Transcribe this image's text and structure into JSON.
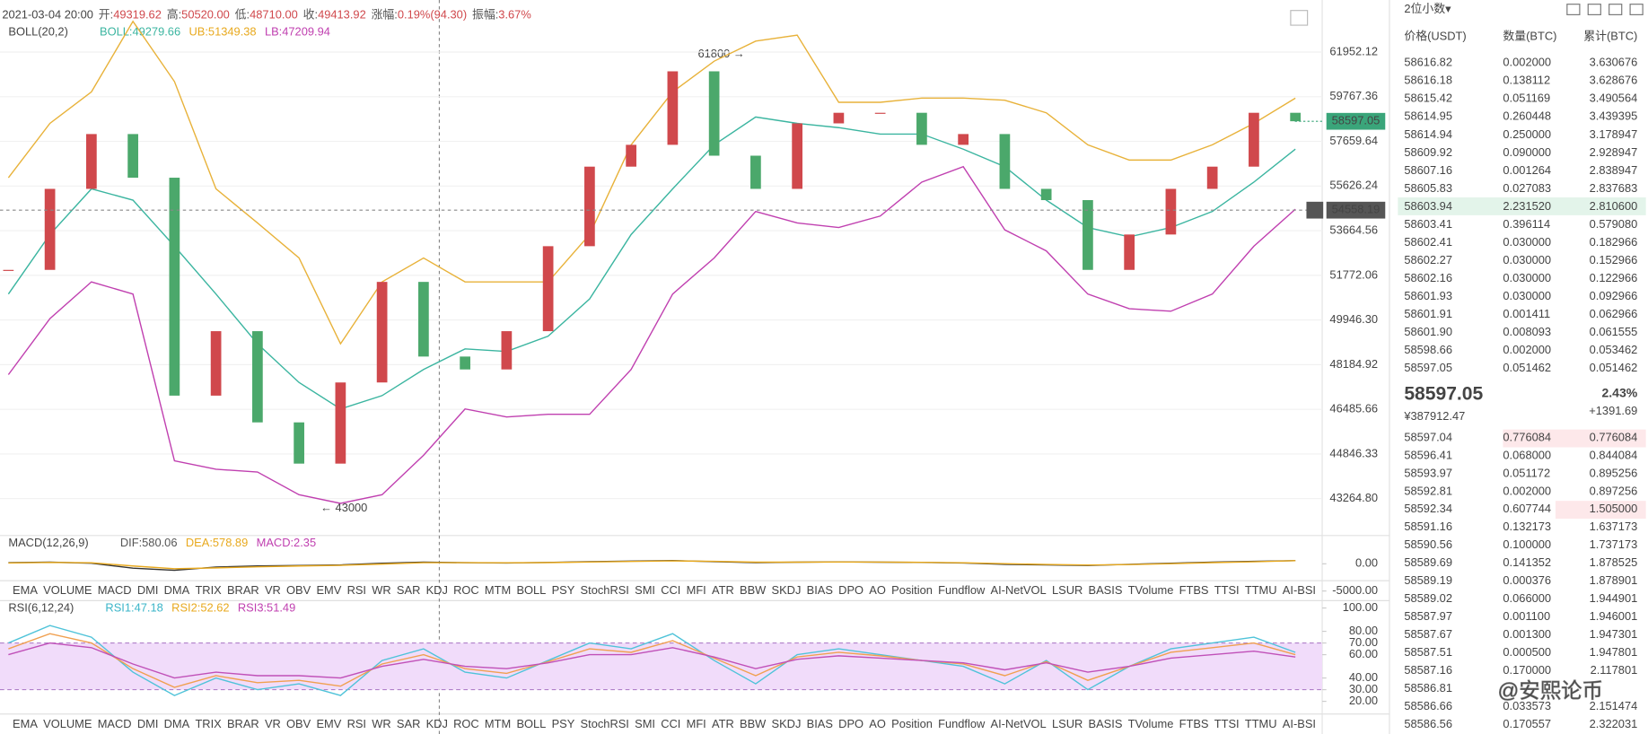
{
  "header": {
    "time": "2021-03-04 20:00",
    "fields": [
      {
        "label": "开:",
        "value": "49319.62"
      },
      {
        "label": "高:",
        "value": "50520.00"
      },
      {
        "label": "低:",
        "value": "48710.00"
      },
      {
        "label": "收:",
        "value": "49413.92"
      },
      {
        "label": "涨幅:",
        "value": "0.19%(94.30)"
      },
      {
        "label": "振幅:",
        "value": "3.67%"
      }
    ]
  },
  "indicators": [
    {
      "name": "BOLL(20,2)",
      "items": [
        {
          "text": "BOLL:49279.66",
          "color": "#3bb5a0"
        },
        {
          "text": "UB:51349.38",
          "color": "#e8a91e"
        },
        {
          "text": "LB:47209.94",
          "color": "#c040b0"
        }
      ]
    },
    {
      "name": "MACD(12,26,9)",
      "items": [
        {
          "text": "DIF:580.06",
          "color": "#555555"
        },
        {
          "text": "DEA:578.89",
          "color": "#e8a91e"
        },
        {
          "text": "MACD:2.35",
          "color": "#c040b0"
        }
      ]
    },
    {
      "name": "RSI(6,12,24)",
      "items": [
        {
          "text": "RSI1:47.18",
          "color": "#3bb5c8"
        },
        {
          "text": "RSI2:52.62",
          "color": "#e8a91e"
        },
        {
          "text": "RSI3:51.49",
          "color": "#c040b0"
        }
      ]
    }
  ],
  "annotations": [
    "61800 →",
    "← 43000"
  ],
  "chart_data": [
    {
      "type": "candlestick",
      "log": true,
      "ylim": [
        42000,
        64600
      ],
      "colors": {
        "up": "#d0484c",
        "down": "#4ba86b"
      },
      "values": [
        52000,
        55500,
        58000,
        56000,
        47000,
        49500,
        46000,
        44500,
        47500,
        51500,
        48500,
        48000,
        49500,
        53000,
        56500,
        57500,
        61000,
        57000,
        55500,
        58500,
        59000,
        59000,
        57500,
        58000,
        55500,
        55000,
        52000,
        53500,
        55500,
        56500,
        59000,
        58600
      ],
      "series": [
        {
          "color": "#e8b23a",
          "values": [
            56000,
            58500,
            60000,
            63500,
            60500,
            55500,
            54000,
            52500,
            49000,
            51500,
            52500,
            51500,
            51500,
            51500,
            53500,
            57500,
            60000,
            61500,
            62500,
            62800,
            59500,
            59500,
            59700,
            59700,
            59600,
            59000,
            57500,
            56800,
            56800,
            57500,
            58500,
            59700
          ]
        },
        {
          "color": "#3bb5a0",
          "values": [
            51000,
            53500,
            55500,
            55000,
            53000,
            51000,
            49000,
            47500,
            46500,
            47000,
            48000,
            48800,
            48700,
            49300,
            50800,
            53500,
            55500,
            57500,
            58800,
            58500,
            58300,
            58000,
            58000,
            57300,
            56500,
            55000,
            53800,
            53400,
            53800,
            54500,
            55800,
            57300
          ]
        },
        {
          "color": "#c040b0",
          "values": [
            47800,
            50000,
            51500,
            51000,
            44600,
            44300,
            44200,
            43400,
            43100,
            43400,
            44800,
            46500,
            46200,
            46300,
            46300,
            48000,
            51000,
            52500,
            54500,
            54000,
            53800,
            54300,
            55800,
            56500,
            53700,
            52800,
            51000,
            50400,
            50300,
            51000,
            53000,
            54600
          ]
        }
      ],
      "yticks": [
        61952.12,
        59767.36,
        57659.64,
        55626.24,
        53664.56,
        51772.06,
        {
          "value": 49946.3,
          "label": "49946.30"
        },
        48184.92,
        46485.66,
        44846.33,
        {
          "value": 43264.8,
          "label": "43264.80"
        }
      ],
      "grid": true,
      "last_price": 58597.05,
      "crosshair_price": 54558.19,
      "last_color": "#3aa57a"
    },
    {
      "type": "line",
      "ylim": [
        -6000,
        2300
      ],
      "series": [
        {
          "color": "#333333",
          "values": [
            200,
            300,
            100,
            -800,
            -1200,
            -600,
            -400,
            -300,
            -200,
            100,
            300,
            200,
            150,
            250,
            400,
            500,
            600,
            400,
            200,
            300,
            350,
            300,
            250,
            150,
            -100,
            -200,
            -300,
            -100,
            100,
            300,
            450,
            580
          ]
        },
        {
          "color": "#e8a91e",
          "values": [
            150,
            250,
            180,
            -400,
            -900,
            -750,
            -550,
            -400,
            -280,
            -50,
            200,
            200,
            180,
            220,
            330,
            430,
            530,
            450,
            300,
            300,
            330,
            310,
            270,
            190,
            20,
            -120,
            -230,
            -150,
            30,
            220,
            380,
            579
          ]
        }
      ],
      "yticks": [
        {
          "value": 0,
          "label": "0.00"
        },
        {
          "value": -5000,
          "label": "-5000.00"
        }
      ]
    },
    {
      "type": "line",
      "ylim": [
        10,
        100
      ],
      "band": [
        30,
        70
      ],
      "band_color": "#f1dcfa",
      "series": [
        {
          "color": "#4fc3d9",
          "values": [
            70,
            85,
            75,
            45,
            25,
            40,
            30,
            35,
            25,
            55,
            65,
            45,
            40,
            55,
            70,
            65,
            78,
            55,
            35,
            60,
            65,
            60,
            55,
            50,
            35,
            55,
            30,
            50,
            65,
            70,
            75,
            62
          ]
        },
        {
          "color": "#f0a050",
          "values": [
            65,
            78,
            70,
            48,
            32,
            42,
            36,
            38,
            33,
            52,
            60,
            48,
            44,
            54,
            65,
            62,
            72,
            57,
            42,
            58,
            62,
            59,
            55,
            52,
            42,
            54,
            38,
            50,
            62,
            66,
            70,
            60
          ]
        },
        {
          "color": "#c050b8",
          "values": [
            60,
            70,
            66,
            52,
            40,
            45,
            42,
            42,
            40,
            50,
            56,
            50,
            48,
            53,
            60,
            60,
            66,
            58,
            48,
            56,
            59,
            57,
            55,
            53,
            47,
            53,
            45,
            50,
            57,
            60,
            63,
            58
          ]
        }
      ],
      "yticks": [
        {
          "value": 100,
          "label": "100.00"
        },
        {
          "value": 80,
          "label": "80.00"
        },
        {
          "value": 70,
          "label": "70.00"
        },
        {
          "value": 60,
          "label": "60.00"
        },
        {
          "value": 40,
          "label": "40.00"
        },
        {
          "value": 30,
          "label": "30.00"
        },
        {
          "value": 20,
          "label": "20.00"
        }
      ]
    }
  ],
  "tabs": [
    "EMA",
    "VOLUME",
    "MACD",
    "DMI",
    "DMA",
    "TRIX",
    "BRAR",
    "VR",
    "OBV",
    "EMV",
    "RSI",
    "WR",
    "SAR",
    "KDJ",
    "ROC",
    "MTM",
    "BOLL",
    "PSY",
    "StochRSI",
    "SMI",
    "CCI",
    "MFI",
    "ATR",
    "BBW",
    "SKDJ",
    "BIAS",
    "DPO",
    "AO",
    "Position",
    "Fundflow",
    "AI-NetVOL",
    "LSUR",
    "BASIS",
    "TVolume",
    "FTBS",
    "TTSI",
    "TTMU",
    "AI-BSI"
  ],
  "tab_bars": [
    {
      "active": "MACD"
    },
    {
      "active": "RSI"
    }
  ],
  "orderbook": {
    "precision": "2位小数▾",
    "columns": [
      "价格(USDT)",
      "数量(BTC)",
      "累计(BTC)"
    ],
    "asks": [
      [
        "58616.82",
        "0.002000",
        "3.630676"
      ],
      [
        "58616.18",
        "0.138112",
        "3.628676"
      ],
      [
        "58615.42",
        "0.051169",
        "3.490564"
      ],
      [
        "58614.95",
        "0.260448",
        "3.439395"
      ],
      [
        "58614.94",
        "0.250000",
        "3.178947"
      ],
      [
        "58609.92",
        "0.090000",
        "2.928947"
      ],
      [
        "58607.16",
        "0.001264",
        "2.838947"
      ],
      [
        "58605.83",
        "0.027083",
        "2.837683"
      ],
      [
        "58603.94",
        "2.231520",
        "2.810600"
      ],
      [
        "58603.41",
        "0.396114",
        "0.579080"
      ],
      [
        "58602.41",
        "0.030000",
        "0.182966"
      ],
      [
        "58602.27",
        "0.030000",
        "0.152966"
      ],
      [
        "58602.16",
        "0.030000",
        "0.122966"
      ],
      [
        "58601.93",
        "0.030000",
        "0.092966"
      ],
      [
        "58601.91",
        "0.001411",
        "0.062966"
      ],
      [
        "58601.90",
        "0.008093",
        "0.061555"
      ],
      [
        "58598.66",
        "0.002000",
        "0.053462"
      ],
      [
        "58597.05",
        "0.051462",
        "0.051462"
      ]
    ],
    "last": "58597.05",
    "change_pct": "2.43%",
    "cny": "¥387912.47",
    "change": "+1391.69",
    "bids": [
      [
        "58597.04",
        "0.776084",
        "0.776084"
      ],
      [
        "58596.41",
        "0.068000",
        "0.844084"
      ],
      [
        "58593.97",
        "0.051172",
        "0.895256"
      ],
      [
        "58592.81",
        "0.002000",
        "0.897256"
      ],
      [
        "58592.34",
        "0.607744",
        "1.505000"
      ],
      [
        "58591.16",
        "0.132173",
        "1.637173"
      ],
      [
        "58590.56",
        "0.100000",
        "1.737173"
      ],
      [
        "58589.69",
        "0.141352",
        "1.878525"
      ],
      [
        "58589.19",
        "0.000376",
        "1.878901"
      ],
      [
        "58589.02",
        "0.066000",
        "1.944901"
      ],
      [
        "58587.97",
        "0.001100",
        "1.946001"
      ],
      [
        "58587.67",
        "0.001300",
        "1.947301"
      ],
      [
        "58587.51",
        "0.000500",
        "1.947801"
      ],
      [
        "58587.16",
        "0.170000",
        "2.117801"
      ],
      [
        "58586.81"
      ],
      [
        "58586.66",
        "0.033573",
        "2.151474"
      ],
      [
        "58586.56",
        "0.170557",
        "2.322031"
      ]
    ]
  },
  "watermark": "@安熙论币"
}
